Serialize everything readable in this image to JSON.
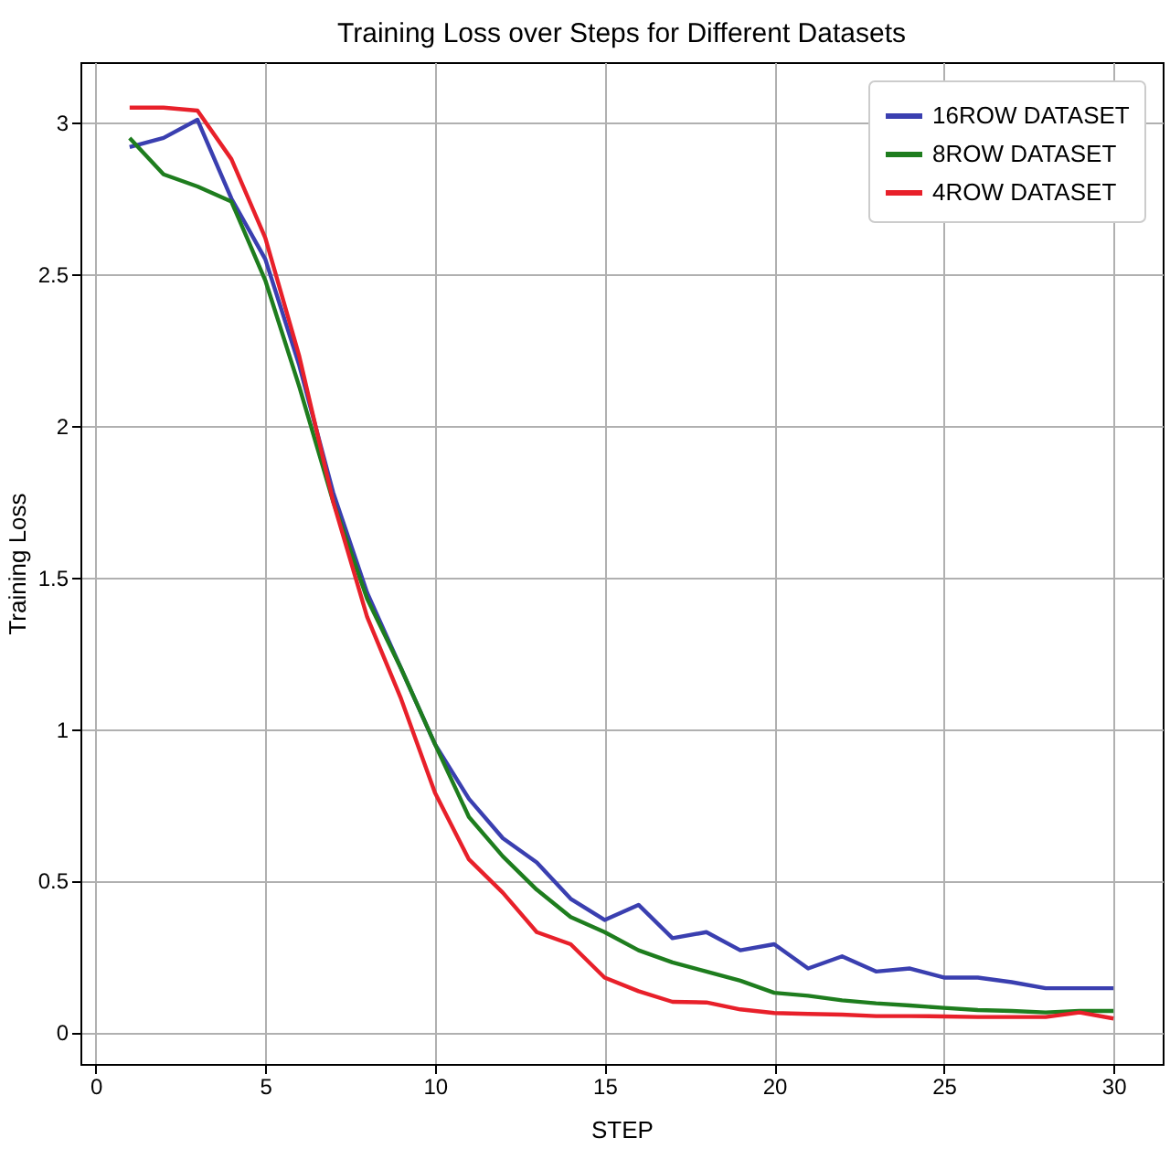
{
  "chart_data": {
    "type": "line",
    "title": "Training Loss over Steps for Different Datasets",
    "xlabel": "STEP",
    "ylabel": "Training Loss",
    "x": [
      1,
      2,
      3,
      4,
      5,
      6,
      7,
      8,
      9,
      10,
      11,
      12,
      13,
      14,
      15,
      16,
      17,
      18,
      19,
      20,
      21,
      22,
      23,
      24,
      25,
      26,
      27,
      28,
      29,
      30
    ],
    "series": [
      {
        "name": "16ROW DATASET",
        "color": "#3a3fb0",
        "values": [
          2.92,
          2.95,
          3.01,
          2.75,
          2.55,
          2.2,
          1.78,
          1.45,
          1.2,
          0.95,
          0.77,
          0.64,
          0.56,
          0.44,
          0.37,
          0.42,
          0.31,
          0.33,
          0.27,
          0.29,
          0.21,
          0.25,
          0.2,
          0.21,
          0.18,
          0.18,
          0.165,
          0.145,
          0.145,
          0.145
        ]
      },
      {
        "name": "8ROW DATASET",
        "color": "#1e7d1e",
        "values": [
          2.95,
          2.83,
          2.79,
          2.74,
          2.48,
          2.13,
          1.75,
          1.43,
          1.2,
          0.95,
          0.71,
          0.58,
          0.47,
          0.38,
          0.33,
          0.27,
          0.23,
          0.2,
          0.17,
          0.13,
          0.12,
          0.105,
          0.095,
          0.088,
          0.08,
          0.073,
          0.07,
          0.065,
          0.07,
          0.07
        ]
      },
      {
        "name": "4ROW DATASET",
        "color": "#e8202a",
        "values": [
          3.05,
          3.05,
          3.04,
          2.88,
          2.62,
          2.23,
          1.75,
          1.37,
          1.1,
          0.79,
          0.57,
          0.46,
          0.33,
          0.29,
          0.18,
          0.135,
          0.1,
          0.098,
          0.075,
          0.063,
          0.06,
          0.058,
          0.053,
          0.053,
          0.052,
          0.05,
          0.05,
          0.05,
          0.065,
          0.045
        ]
      }
    ],
    "xlim": [
      -0.45,
      31.45
    ],
    "ylim": [
      -0.105,
      3.2
    ],
    "xticks": [
      0,
      5,
      10,
      15,
      20,
      25,
      30
    ],
    "yticks": [
      0,
      0.5,
      1,
      1.5,
      2,
      2.5,
      3
    ],
    "grid": true,
    "legend": "top right",
    "marker": "none",
    "line_style": "solid"
  }
}
